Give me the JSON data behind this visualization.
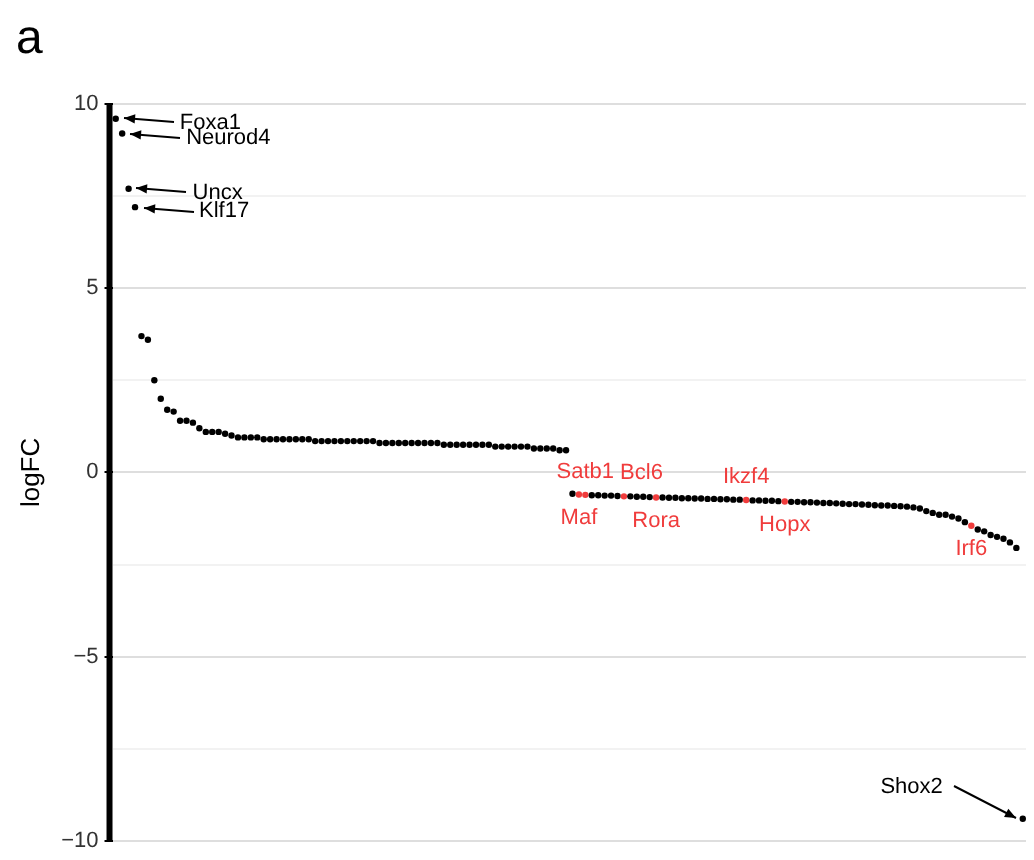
{
  "chart_data": {
    "type": "scatter",
    "ylabel": "logFC",
    "categories": [
      null,
      null,
      null,
      null,
      null,
      null,
      null,
      null,
      null,
      null,
      null,
      null,
      null,
      null,
      null,
      null,
      null,
      null,
      null,
      null,
      null,
      null,
      null,
      null,
      null,
      null,
      null,
      null,
      null,
      null,
      null,
      null,
      null,
      null,
      null,
      null,
      null,
      null,
      null,
      null,
      null,
      null,
      null,
      null,
      null,
      null,
      null,
      null,
      null,
      null,
      null,
      null,
      null,
      null,
      null,
      null,
      null,
      null,
      null,
      null,
      null,
      null,
      null,
      null,
      null,
      null,
      null,
      null,
      null,
      null,
      null,
      null,
      null,
      null,
      null,
      null,
      null,
      null,
      null,
      null,
      null,
      null,
      null,
      null,
      null,
      null,
      null,
      null,
      null,
      null,
      null,
      null,
      null,
      null,
      null,
      null,
      null,
      null,
      null,
      null,
      null,
      null,
      null,
      null,
      null,
      null,
      null,
      null,
      null,
      null,
      null,
      null,
      null,
      null,
      null,
      null,
      null,
      null,
      null,
      null,
      null,
      null,
      null,
      null,
      null,
      null,
      null,
      null,
      null,
      null,
      null,
      null,
      null,
      null,
      null,
      null,
      null,
      null,
      null,
      null,
      null,
      null
    ],
    "values": [
      9.6,
      9.2,
      7.7,
      7.2,
      3.7,
      3.6,
      2.5,
      2.0,
      1.7,
      1.65,
      1.4,
      1.4,
      1.35,
      1.2,
      1.1,
      1.1,
      1.1,
      1.05,
      1.0,
      0.95,
      0.95,
      0.95,
      0.95,
      0.9,
      0.9,
      0.9,
      0.9,
      0.9,
      0.9,
      0.9,
      0.9,
      0.85,
      0.85,
      0.85,
      0.85,
      0.85,
      0.85,
      0.85,
      0.85,
      0.85,
      0.85,
      0.8,
      0.8,
      0.8,
      0.8,
      0.8,
      0.8,
      0.8,
      0.8,
      0.8,
      0.8,
      0.75,
      0.75,
      0.75,
      0.75,
      0.75,
      0.75,
      0.75,
      0.75,
      0.7,
      0.7,
      0.7,
      0.7,
      0.7,
      0.7,
      0.65,
      0.65,
      0.65,
      0.65,
      0.6,
      0.6,
      -0.58,
      -0.6,
      -0.61,
      -0.62,
      -0.62,
      -0.63,
      -0.63,
      -0.64,
      -0.65,
      -0.65,
      -0.66,
      -0.66,
      -0.67,
      -0.68,
      -0.68,
      -0.69,
      -0.69,
      -0.7,
      -0.7,
      -0.71,
      -0.71,
      -0.72,
      -0.72,
      -0.73,
      -0.73,
      -0.74,
      -0.74,
      -0.75,
      -0.76,
      -0.76,
      -0.77,
      -0.77,
      -0.78,
      -0.79,
      -0.8,
      -0.8,
      -0.81,
      -0.81,
      -0.82,
      -0.83,
      -0.83,
      -0.84,
      -0.85,
      -0.86,
      -0.86,
      -0.87,
      -0.88,
      -0.89,
      -0.9,
      -0.9,
      -0.91,
      -0.92,
      -0.93,
      -0.95,
      -0.98,
      -1.05,
      -1.1,
      -1.15,
      -1.15,
      -1.2,
      -1.25,
      -1.35,
      -1.45,
      -1.55,
      -1.6,
      -1.7,
      -1.75,
      -1.8,
      -1.9,
      -2.05,
      -9.4
    ],
    "colors": [
      "#000000",
      "#000000",
      "#000000",
      "#000000",
      "#000000",
      "#000000",
      "#000000",
      "#000000",
      "#000000",
      "#000000",
      "#000000",
      "#000000",
      "#000000",
      "#000000",
      "#000000",
      "#000000",
      "#000000",
      "#000000",
      "#000000",
      "#000000",
      "#000000",
      "#000000",
      "#000000",
      "#000000",
      "#000000",
      "#000000",
      "#000000",
      "#000000",
      "#000000",
      "#000000",
      "#000000",
      "#000000",
      "#000000",
      "#000000",
      "#000000",
      "#000000",
      "#000000",
      "#000000",
      "#000000",
      "#000000",
      "#000000",
      "#000000",
      "#000000",
      "#000000",
      "#000000",
      "#000000",
      "#000000",
      "#000000",
      "#000000",
      "#000000",
      "#000000",
      "#000000",
      "#000000",
      "#000000",
      "#000000",
      "#000000",
      "#000000",
      "#000000",
      "#000000",
      "#000000",
      "#000000",
      "#000000",
      "#000000",
      "#000000",
      "#000000",
      "#000000",
      "#000000",
      "#000000",
      "#000000",
      "#000000",
      "#000000",
      "#000000",
      "#f03c3c",
      "#f03c3c",
      "#000000",
      "#000000",
      "#000000",
      "#000000",
      "#000000",
      "#f03c3c",
      "#000000",
      "#000000",
      "#000000",
      "#000000",
      "#f03c3c",
      "#000000",
      "#000000",
      "#000000",
      "#000000",
      "#000000",
      "#000000",
      "#000000",
      "#000000",
      "#000000",
      "#000000",
      "#000000",
      "#000000",
      "#000000",
      "#f03c3c",
      "#000000",
      "#000000",
      "#000000",
      "#000000",
      "#000000",
      "#f03c3c",
      "#000000",
      "#000000",
      "#000000",
      "#000000",
      "#000000",
      "#000000",
      "#000000",
      "#000000",
      "#000000",
      "#000000",
      "#000000",
      "#000000",
      "#000000",
      "#000000",
      "#000000",
      "#000000",
      "#000000",
      "#000000",
      "#000000",
      "#000000",
      "#000000",
      "#000000",
      "#000000",
      "#000000",
      "#000000",
      "#000000",
      "#000000",
      "#000000",
      "#f03c3c",
      "#000000",
      "#000000",
      "#000000",
      "#000000",
      "#000000",
      "#000000",
      "#000000",
      "#000000"
    ],
    "ylim": [
      -10,
      10
    ],
    "yticks": [
      -10,
      {
        "value": -7.5,
        "label": null
      },
      -5,
      {
        "value": -2.5,
        "label": null
      },
      0,
      {
        "value": 2.5,
        "label": null
      },
      5,
      {
        "value": 7.5,
        "label": null
      },
      10
    ],
    "grid": "y",
    "tick_labels": "y",
    "marker": "circle",
    "annotations": [
      "a",
      "Foxa1",
      "Neurod4",
      "Uncx",
      "Klf17",
      {
        "text": "Satb1",
        "y": -0.61
      },
      {
        "text": "Maf",
        "y": -0.6
      },
      {
        "text": "Bcl6",
        "y": -0.65
      },
      {
        "text": "Rora",
        "y": -0.68
      },
      {
        "text": "Ikzf4",
        "y": -0.75
      },
      {
        "text": "Hopx",
        "y": -0.79
      },
      {
        "text": "Irf6",
        "y": -1.45
      },
      "Shox2"
    ]
  }
}
